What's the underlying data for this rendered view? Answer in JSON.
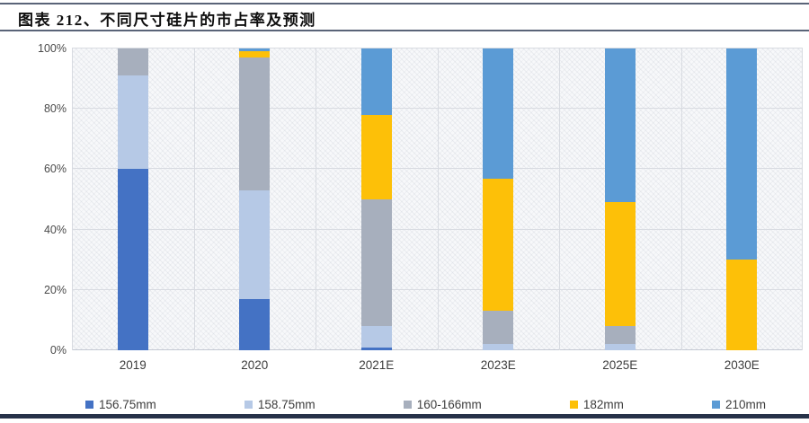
{
  "header": {
    "title": "图表 212、不同尺寸硅片的市占率及预测"
  },
  "chart_data": {
    "type": "bar",
    "stacked": true,
    "title": "图表 212、不同尺寸硅片的市占率及预测",
    "categories": [
      "2019",
      "2020",
      "2021E",
      "2023E",
      "2025E",
      "2030E"
    ],
    "series": [
      {
        "name": "156.75mm",
        "color": "#4472C4",
        "values": [
          60,
          17,
          1,
          0,
          0,
          0
        ]
      },
      {
        "name": "158.75mm",
        "color": "#B6C9E6",
        "values": [
          31,
          36,
          7,
          2,
          2,
          0
        ]
      },
      {
        "name": "160-166mm",
        "color": "#A7AFBD",
        "values": [
          9,
          44,
          42,
          11,
          6,
          0
        ]
      },
      {
        "name": "182mm",
        "color": "#FDC008",
        "values": [
          0,
          2,
          28,
          44,
          41,
          30
        ]
      },
      {
        "name": "210mm",
        "color": "#5B9BD5",
        "values": [
          0,
          1,
          22,
          43,
          51,
          70
        ]
      }
    ],
    "ylabel": "",
    "xlabel": "",
    "ylim": [
      0,
      100
    ],
    "yticks": [
      {
        "value": 0,
        "label": "0%"
      },
      {
        "value": 20,
        "label": "20%"
      },
      {
        "value": 40,
        "label": "40%"
      },
      {
        "value": 60,
        "label": "60%"
      },
      {
        "value": 80,
        "label": "80%"
      },
      {
        "value": 100,
        "label": "100%"
      }
    ],
    "grid": true,
    "legend_position": "bottom"
  }
}
